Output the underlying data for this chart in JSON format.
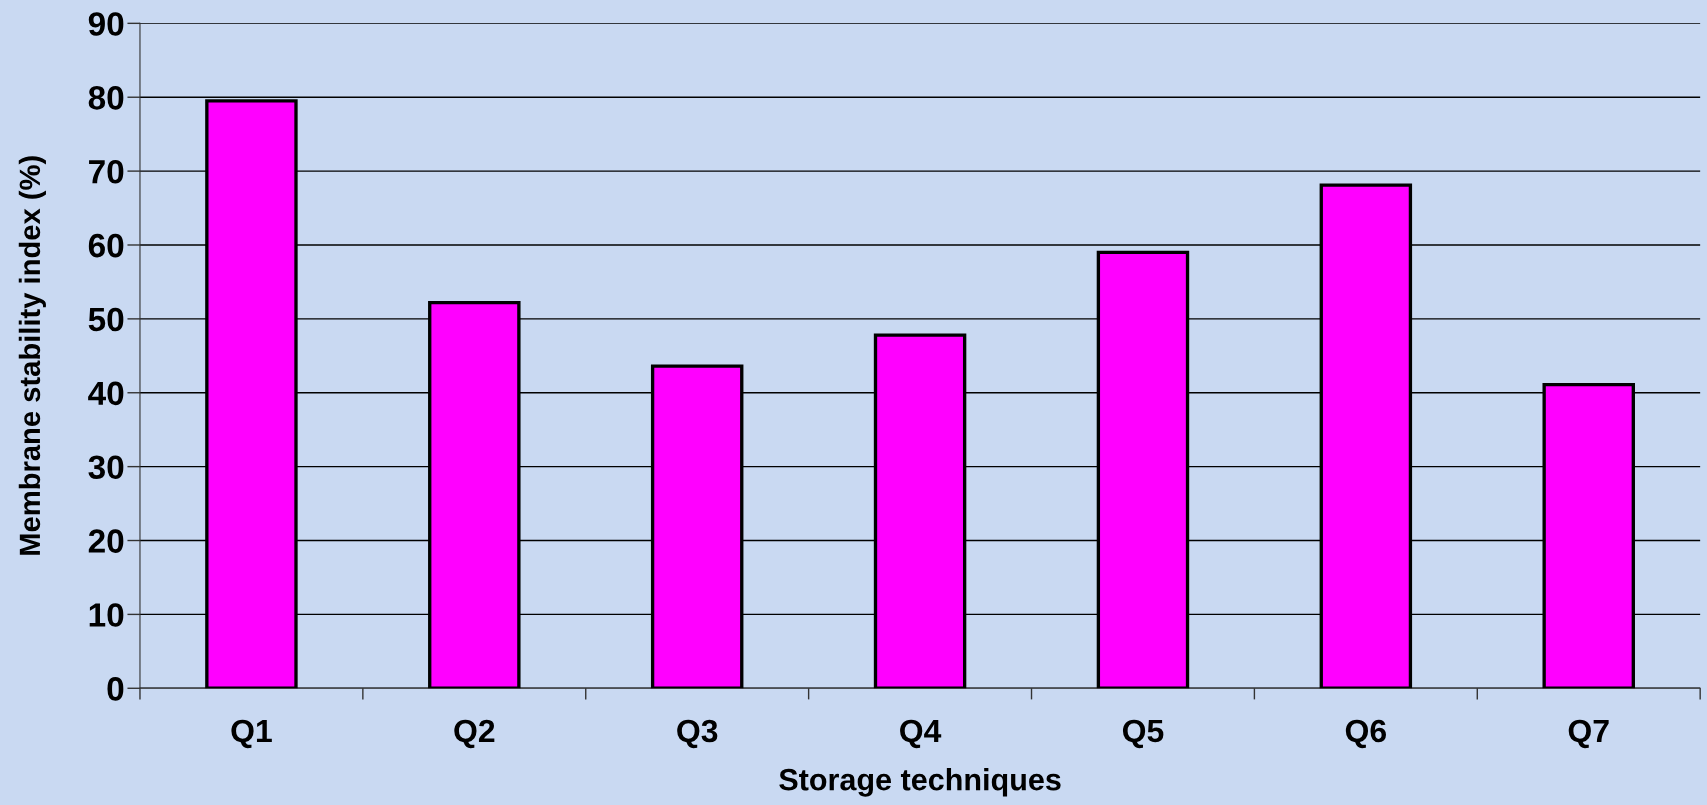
{
  "chart_data": {
    "type": "bar",
    "xlabel": "Storage techniques",
    "ylabel": "Membrane stability index (%)",
    "categories": [
      "Q1",
      "Q2",
      "Q3",
      "Q4",
      "Q5",
      "Q6",
      "Q7"
    ],
    "values": [
      79.5,
      52.2,
      43.6,
      47.8,
      59.0,
      68.1,
      41.1
    ],
    "color": "#ff00ff",
    "ylim": [
      0,
      90
    ],
    "yticks": [
      0,
      10,
      20,
      30,
      40,
      50,
      60,
      70,
      80,
      90
    ],
    "grid": "y"
  }
}
